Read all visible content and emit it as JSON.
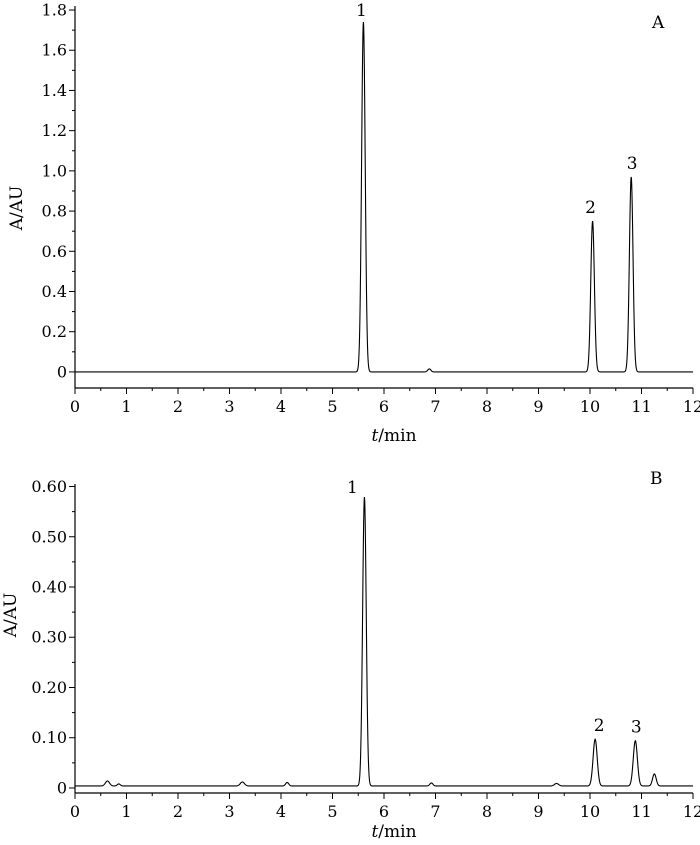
{
  "chart_data": [
    {
      "type": "line",
      "panel_label": "A",
      "xlabel_italic": "t",
      "xlabel_rest": "/min",
      "ylabel": "A/AU",
      "xlim": [
        0,
        12
      ],
      "ylim": [
        -0.08,
        1.82
      ],
      "x_ticks": [
        0,
        1,
        2,
        3,
        4,
        5,
        6,
        7,
        8,
        9,
        10,
        11,
        12
      ],
      "x_tick_labels": [
        "0",
        "1",
        "2",
        "3",
        "4",
        "5",
        "6",
        "7",
        "8",
        "9",
        "10",
        "11",
        "12"
      ],
      "y_ticks": [
        0,
        0.2,
        0.4,
        0.6,
        0.8,
        1.0,
        1.2,
        1.4,
        1.6,
        1.8
      ],
      "y_tick_labels": [
        "0",
        "0.2",
        "0.4",
        "0.6",
        "0.8",
        "1.0",
        "1.2",
        "1.4",
        "1.6",
        "1.8"
      ],
      "baseline": 0.0,
      "peaks": [
        {
          "label": "1",
          "t": 5.6,
          "height": 1.74,
          "width": 0.035
        },
        {
          "label": "",
          "t": 6.88,
          "height": 0.015,
          "width": 0.03
        },
        {
          "label": "2",
          "t": 10.05,
          "height": 0.75,
          "width": 0.035
        },
        {
          "label": "3",
          "t": 10.8,
          "height": 0.97,
          "width": 0.035
        }
      ],
      "series": [
        {
          "name": "",
          "color": "#000000"
        }
      ]
    },
    {
      "type": "line",
      "panel_label": "B",
      "xlabel_italic": "t",
      "xlabel_rest": "/min",
      "ylabel": "A/AU",
      "xlim": [
        0,
        12
      ],
      "ylim": [
        -0.01,
        0.605
      ],
      "x_ticks": [
        0,
        1,
        2,
        3,
        4,
        5,
        6,
        7,
        8,
        9,
        10,
        11,
        12
      ],
      "x_tick_labels": [
        "0",
        "1",
        "2",
        "3",
        "4",
        "5",
        "6",
        "7",
        "8",
        "9",
        "10",
        "11",
        "12"
      ],
      "y_ticks": [
        0,
        0.1,
        0.2,
        0.3,
        0.4,
        0.5,
        0.6
      ],
      "y_tick_labels": [
        "0",
        "0.10",
        "0.20",
        "0.30",
        "0.40",
        "0.50",
        "0.60"
      ],
      "baseline": 0.004,
      "peaks": [
        {
          "label": "",
          "t": 0.63,
          "height": 0.01,
          "width": 0.04
        },
        {
          "label": "",
          "t": 0.85,
          "height": 0.004,
          "width": 0.03
        },
        {
          "label": "",
          "t": 3.25,
          "height": 0.008,
          "width": 0.04
        },
        {
          "label": "",
          "t": 4.12,
          "height": 0.007,
          "width": 0.03
        },
        {
          "label": "1",
          "t": 5.62,
          "height": 0.575,
          "width": 0.035
        },
        {
          "label": "",
          "t": 6.92,
          "height": 0.006,
          "width": 0.03
        },
        {
          "label": "",
          "t": 9.35,
          "height": 0.005,
          "width": 0.04
        },
        {
          "label": "2",
          "t": 10.1,
          "height": 0.093,
          "width": 0.04
        },
        {
          "label": "3",
          "t": 10.88,
          "height": 0.09,
          "width": 0.04
        },
        {
          "label": "",
          "t": 11.25,
          "height": 0.024,
          "width": 0.035
        }
      ],
      "series": [
        {
          "name": "",
          "color": "#000000"
        }
      ]
    }
  ]
}
